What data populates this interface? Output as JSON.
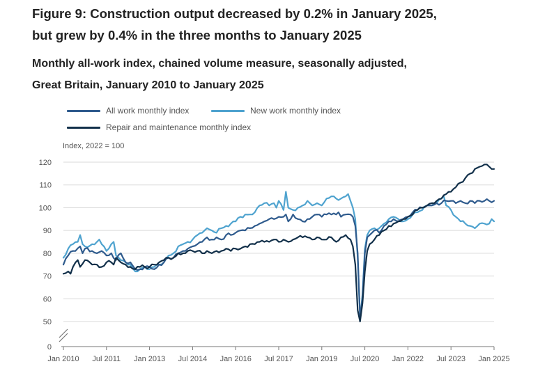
{
  "title_lines": [
    "Figure 9: Construction output decreased by 0.2% in January 2025,",
    "but grew by 0.4% in the three months to January 2025"
  ],
  "subtitle_lines": [
    "Monthly all-work index, chained volume measure, seasonally adjusted,",
    "Great Britain, January 2010 to January 2025"
  ],
  "colors": {
    "all_work": "#2f5b8d",
    "new_work": "#4fa3cf",
    "repair": "#12304a",
    "grid": "#d9d9d9",
    "axis": "#777777"
  },
  "chart_data": {
    "type": "line",
    "title": "Figure 9: Construction output decreased by 0.2% in January 2025, but grew by 0.4% in the three months to January 2025",
    "ylabel": "Index, 2022 = 100",
    "xlabel": "",
    "ylim": [
      0,
      125
    ],
    "yticks": [
      0,
      50,
      60,
      70,
      80,
      90,
      100,
      110,
      120
    ],
    "axis_break": "between 0 and 50",
    "grid": true,
    "x_start": "Jan 2010",
    "x_end": "Jan 2025",
    "xticks": [
      {
        "label": "Jan 2010",
        "month_index": 0
      },
      {
        "label": "Jul 2011",
        "month_index": 18
      },
      {
        "label": "Jan 2013",
        "month_index": 36
      },
      {
        "label": "Jul 2014",
        "month_index": 54
      },
      {
        "label": "Jan 2016",
        "month_index": 72
      },
      {
        "label": "Jul 2017",
        "month_index": 90
      },
      {
        "label": "Jan 2019",
        "month_index": 108
      },
      {
        "label": "Jul 2020",
        "month_index": 126
      },
      {
        "label": "Jan 2022",
        "month_index": 144
      },
      {
        "label": "Jul 2023",
        "month_index": 162
      },
      {
        "label": "Jan 2025",
        "month_index": 180
      }
    ],
    "series": [
      {
        "name": "All work monthly index",
        "color_key": "all_work",
        "anchors": [
          [
            0,
            75
          ],
          [
            2,
            79
          ],
          [
            4,
            81
          ],
          [
            7,
            83
          ],
          [
            8,
            80
          ],
          [
            9,
            82
          ],
          [
            12,
            81
          ],
          [
            14,
            80
          ],
          [
            16,
            81
          ],
          [
            18,
            79
          ],
          [
            20,
            80
          ],
          [
            22,
            77
          ],
          [
            24,
            80
          ],
          [
            26,
            76
          ],
          [
            28,
            76
          ],
          [
            30,
            73
          ],
          [
            32,
            73
          ],
          [
            34,
            74
          ],
          [
            36,
            74
          ],
          [
            38,
            73
          ],
          [
            40,
            75
          ],
          [
            42,
            76
          ],
          [
            44,
            78
          ],
          [
            46,
            78
          ],
          [
            48,
            80
          ],
          [
            50,
            81
          ],
          [
            52,
            82
          ],
          [
            54,
            83
          ],
          [
            56,
            84
          ],
          [
            58,
            85
          ],
          [
            60,
            87
          ],
          [
            62,
            86
          ],
          [
            64,
            87
          ],
          [
            66,
            86
          ],
          [
            68,
            88
          ],
          [
            70,
            88
          ],
          [
            72,
            89
          ],
          [
            74,
            90
          ],
          [
            76,
            90
          ],
          [
            78,
            91
          ],
          [
            80,
            92
          ],
          [
            82,
            93
          ],
          [
            84,
            94
          ],
          [
            86,
            95
          ],
          [
            88,
            95
          ],
          [
            90,
            96
          ],
          [
            92,
            96
          ],
          [
            93,
            97
          ],
          [
            94,
            94
          ],
          [
            96,
            97
          ],
          [
            98,
            95
          ],
          [
            100,
            94
          ],
          [
            102,
            95
          ],
          [
            104,
            96
          ],
          [
            106,
            97
          ],
          [
            108,
            96
          ],
          [
            110,
            97
          ],
          [
            112,
            97
          ],
          [
            114,
            97
          ],
          [
            115,
            98
          ],
          [
            116,
            96
          ],
          [
            118,
            97
          ],
          [
            120,
            97
          ],
          [
            121,
            96
          ],
          [
            122,
            92
          ],
          [
            123,
            80
          ],
          [
            124,
            52
          ],
          [
            125,
            60
          ],
          [
            126,
            80
          ],
          [
            127,
            87
          ],
          [
            128,
            88
          ],
          [
            130,
            90
          ],
          [
            132,
            89
          ],
          [
            134,
            92
          ],
          [
            136,
            94
          ],
          [
            138,
            95
          ],
          [
            140,
            94
          ],
          [
            142,
            95
          ],
          [
            144,
            96
          ],
          [
            146,
            98
          ],
          [
            148,
            99
          ],
          [
            150,
            100
          ],
          [
            152,
            101
          ],
          [
            154,
            101
          ],
          [
            156,
            102
          ],
          [
            158,
            102
          ],
          [
            160,
            103
          ],
          [
            162,
            103
          ],
          [
            164,
            102
          ],
          [
            166,
            103
          ],
          [
            168,
            102
          ],
          [
            170,
            103
          ],
          [
            172,
            102
          ],
          [
            174,
            103
          ],
          [
            176,
            103
          ],
          [
            178,
            103
          ],
          [
            180,
            103
          ]
        ]
      },
      {
        "name": "New work monthly index",
        "color_key": "new_work",
        "anchors": [
          [
            0,
            78
          ],
          [
            2,
            82
          ],
          [
            4,
            84
          ],
          [
            6,
            85
          ],
          [
            7,
            88
          ],
          [
            8,
            84
          ],
          [
            9,
            83
          ],
          [
            12,
            84
          ],
          [
            14,
            85
          ],
          [
            15,
            86
          ],
          [
            16,
            84
          ],
          [
            18,
            81
          ],
          [
            20,
            84
          ],
          [
            21,
            85
          ],
          [
            22,
            79
          ],
          [
            24,
            77
          ],
          [
            26,
            76
          ],
          [
            28,
            75
          ],
          [
            30,
            72
          ],
          [
            32,
            73
          ],
          [
            34,
            74
          ],
          [
            36,
            73
          ],
          [
            38,
            74
          ],
          [
            40,
            75
          ],
          [
            42,
            76
          ],
          [
            44,
            79
          ],
          [
            46,
            80
          ],
          [
            48,
            83
          ],
          [
            50,
            84
          ],
          [
            52,
            85
          ],
          [
            54,
            86
          ],
          [
            56,
            88
          ],
          [
            58,
            89
          ],
          [
            60,
            91
          ],
          [
            62,
            90
          ],
          [
            64,
            89
          ],
          [
            66,
            91
          ],
          [
            68,
            92
          ],
          [
            70,
            93
          ],
          [
            72,
            94
          ],
          [
            74,
            96
          ],
          [
            76,
            97
          ],
          [
            78,
            97
          ],
          [
            80,
            98
          ],
          [
            82,
            101
          ],
          [
            84,
            102
          ],
          [
            86,
            101
          ],
          [
            88,
            102
          ],
          [
            89,
            100
          ],
          [
            90,
            103
          ],
          [
            92,
            99
          ],
          [
            93,
            107
          ],
          [
            94,
            100
          ],
          [
            96,
            99
          ],
          [
            98,
            100
          ],
          [
            100,
            101
          ],
          [
            102,
            103
          ],
          [
            104,
            101
          ],
          [
            106,
            102
          ],
          [
            108,
            101
          ],
          [
            110,
            104
          ],
          [
            112,
            105
          ],
          [
            114,
            104
          ],
          [
            116,
            104
          ],
          [
            118,
            105
          ],
          [
            119,
            106
          ],
          [
            120,
            103
          ],
          [
            121,
            100
          ],
          [
            122,
            95
          ],
          [
            123,
            78
          ],
          [
            124,
            51
          ],
          [
            125,
            62
          ],
          [
            126,
            82
          ],
          [
            127,
            88
          ],
          [
            128,
            90
          ],
          [
            130,
            91
          ],
          [
            132,
            91
          ],
          [
            134,
            93
          ],
          [
            136,
            95
          ],
          [
            138,
            96
          ],
          [
            140,
            95
          ],
          [
            142,
            94
          ],
          [
            144,
            95
          ],
          [
            146,
            97
          ],
          [
            148,
            98
          ],
          [
            150,
            99
          ],
          [
            152,
            101
          ],
          [
            154,
            101
          ],
          [
            156,
            102
          ],
          [
            158,
            104
          ],
          [
            159,
            105
          ],
          [
            160,
            101
          ],
          [
            162,
            99
          ],
          [
            164,
            96
          ],
          [
            166,
            94
          ],
          [
            168,
            93
          ],
          [
            170,
            92
          ],
          [
            172,
            91
          ],
          [
            174,
            93
          ],
          [
            176,
            93
          ],
          [
            178,
            93
          ],
          [
            179,
            95
          ],
          [
            180,
            94
          ]
        ]
      },
      {
        "name": "Repair and maintenance monthly index",
        "color_key": "repair",
        "anchors": [
          [
            0,
            71
          ],
          [
            2,
            72
          ],
          [
            3,
            71
          ],
          [
            4,
            74
          ],
          [
            6,
            77
          ],
          [
            7,
            74
          ],
          [
            9,
            77
          ],
          [
            11,
            76
          ],
          [
            12,
            75
          ],
          [
            14,
            75
          ],
          [
            16,
            74
          ],
          [
            18,
            76
          ],
          [
            20,
            76
          ],
          [
            21,
            75
          ],
          [
            22,
            78
          ],
          [
            23,
            77
          ],
          [
            24,
            76
          ],
          [
            26,
            75
          ],
          [
            28,
            74
          ],
          [
            30,
            73
          ],
          [
            32,
            74
          ],
          [
            34,
            74
          ],
          [
            36,
            74
          ],
          [
            38,
            75
          ],
          [
            40,
            76
          ],
          [
            42,
            77
          ],
          [
            44,
            78
          ],
          [
            46,
            78
          ],
          [
            48,
            80
          ],
          [
            50,
            80
          ],
          [
            52,
            81
          ],
          [
            54,
            81
          ],
          [
            56,
            81
          ],
          [
            58,
            80
          ],
          [
            60,
            81
          ],
          [
            62,
            80
          ],
          [
            64,
            81
          ],
          [
            66,
            81
          ],
          [
            68,
            82
          ],
          [
            70,
            81
          ],
          [
            72,
            82
          ],
          [
            74,
            82
          ],
          [
            76,
            83
          ],
          [
            78,
            84
          ],
          [
            80,
            84
          ],
          [
            82,
            85
          ],
          [
            84,
            85
          ],
          [
            86,
            85
          ],
          [
            88,
            86
          ],
          [
            90,
            85
          ],
          [
            92,
            86
          ],
          [
            94,
            85
          ],
          [
            96,
            86
          ],
          [
            98,
            87
          ],
          [
            100,
            87
          ],
          [
            102,
            87
          ],
          [
            104,
            86
          ],
          [
            106,
            87
          ],
          [
            108,
            86
          ],
          [
            110,
            86
          ],
          [
            112,
            87
          ],
          [
            114,
            85
          ],
          [
            116,
            87
          ],
          [
            118,
            88
          ],
          [
            120,
            86
          ],
          [
            121,
            83
          ],
          [
            122,
            75
          ],
          [
            123,
            55
          ],
          [
            124,
            50
          ],
          [
            125,
            58
          ],
          [
            126,
            72
          ],
          [
            127,
            81
          ],
          [
            128,
            84
          ],
          [
            130,
            86
          ],
          [
            132,
            88
          ],
          [
            134,
            90
          ],
          [
            136,
            92
          ],
          [
            138,
            93
          ],
          [
            140,
            94
          ],
          [
            142,
            95
          ],
          [
            144,
            96
          ],
          [
            146,
            97
          ],
          [
            148,
            99
          ],
          [
            150,
            100
          ],
          [
            152,
            101
          ],
          [
            154,
            102
          ],
          [
            156,
            103
          ],
          [
            158,
            104
          ],
          [
            160,
            106
          ],
          [
            162,
            107
          ],
          [
            164,
            109
          ],
          [
            166,
            111
          ],
          [
            168,
            113
          ],
          [
            170,
            115
          ],
          [
            172,
            117
          ],
          [
            174,
            118
          ],
          [
            176,
            119
          ],
          [
            177,
            119
          ],
          [
            178,
            118
          ],
          [
            179,
            117
          ],
          [
            180,
            117
          ]
        ]
      }
    ]
  }
}
